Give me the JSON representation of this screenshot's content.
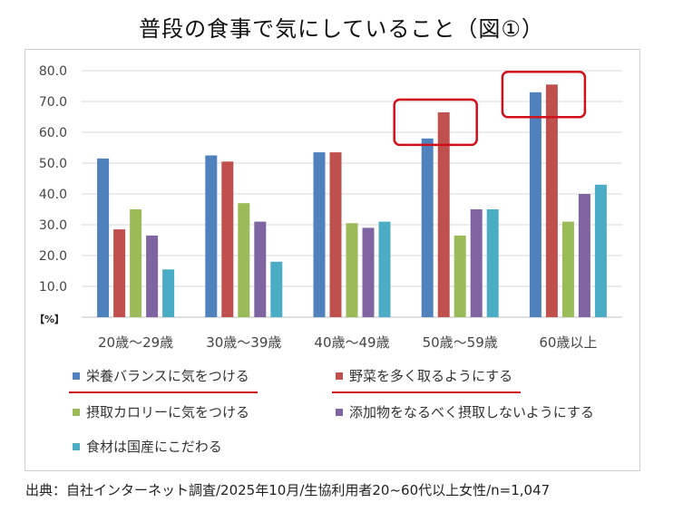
{
  "title": "普段の食事で気にしていること（図①）",
  "source": "出典：自社インターネット調査/2025年10月/生協利用者20~60代以上女性/n=1,047",
  "chart_data": {
    "type": "bar",
    "y_unit_label": "【%】",
    "ylim": [
      0,
      80
    ],
    "yticks": [
      "80.0",
      "70.0",
      "60.0",
      "50.0",
      "40.0",
      "30.0",
      "20.0",
      "10.0"
    ],
    "grid": true,
    "legend_position": "bottom",
    "categories": [
      "20歳～29歳",
      "30歳～39歳",
      "40歳～49歳",
      "50歳～59歳",
      "60歳以上"
    ],
    "series": [
      {
        "name": "栄養バランスに気をつける",
        "color": "#4f81bd",
        "values": [
          51.5,
          52.5,
          53.5,
          58.0,
          73.0
        ]
      },
      {
        "name": "野菜を多く取るようにする",
        "color": "#c0504d",
        "values": [
          28.5,
          50.5,
          53.5,
          66.5,
          75.5
        ]
      },
      {
        "name": "摂取カロリーに気をつける",
        "color": "#9bbb59",
        "values": [
          35.0,
          37.0,
          30.5,
          26.5,
          31.0
        ]
      },
      {
        "name": "添加物をなるべく摂取しないようにする",
        "color": "#8064a2",
        "values": [
          26.5,
          31.0,
          29.0,
          35.0,
          40.0
        ]
      },
      {
        "name": "食材は国産にこだわる",
        "color": "#4bacc6",
        "values": [
          15.5,
          18.0,
          31.0,
          35.0,
          43.0
        ]
      }
    ],
    "highlighted_categories": [
      "50歳～59歳",
      "60歳以上"
    ],
    "highlight_color": "#d0101a",
    "underlined_legend_entries": [
      "栄養バランスに気をつける",
      "野菜を多く取るようにする"
    ]
  }
}
